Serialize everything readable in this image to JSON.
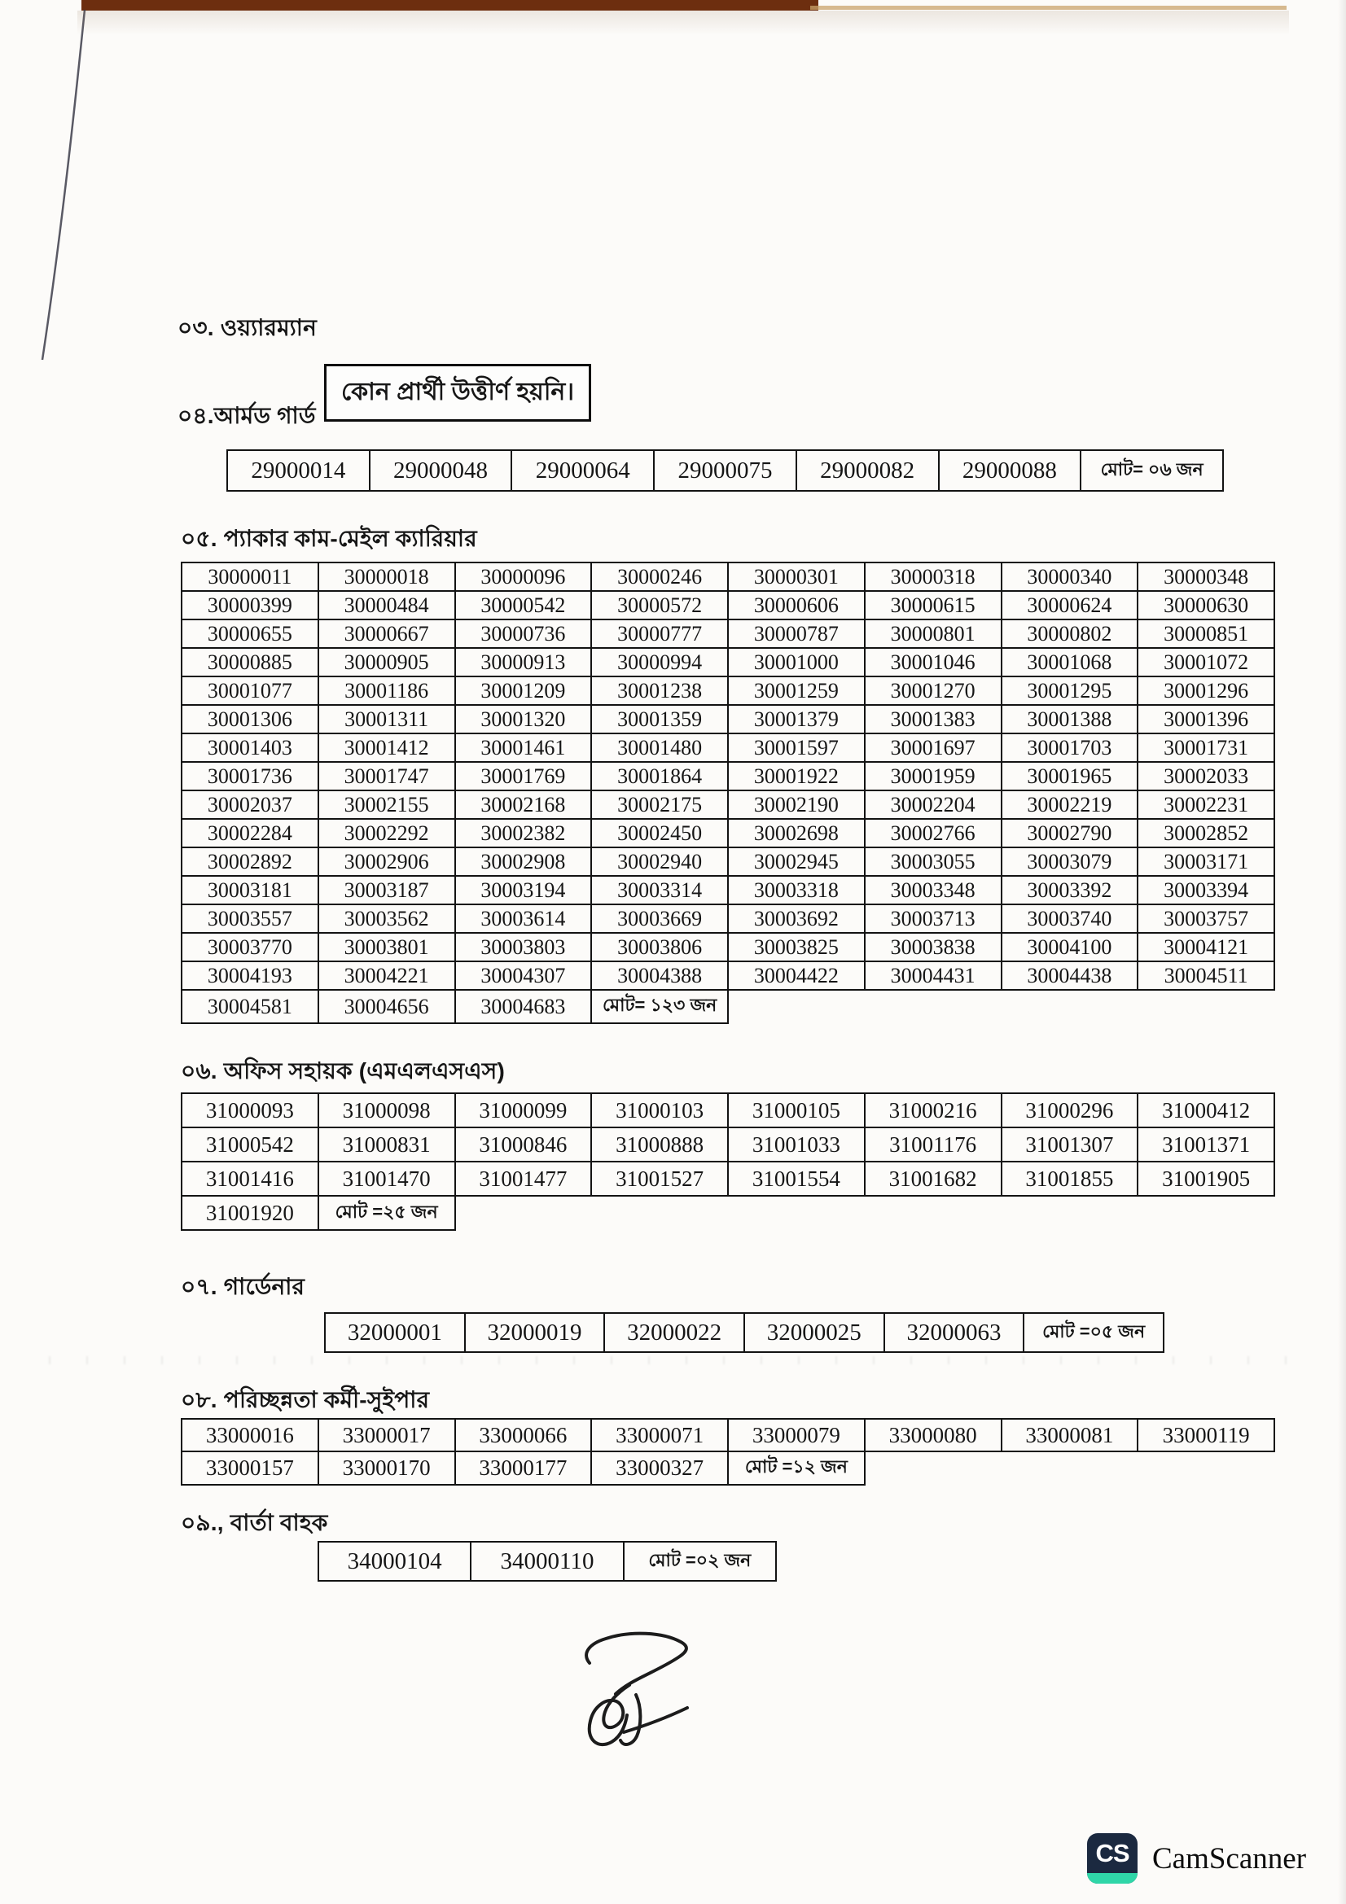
{
  "document": {
    "sections": [
      {
        "id": "wireman",
        "title": "০৩. ওয়্যারম্যান",
        "note": "কোন প্রার্থী উত্তীর্ণ হয়নি।"
      },
      {
        "id": "armed-guard",
        "title": "০৪.আর্মড গার্ড",
        "total_label": "মোট= ০৬ জন",
        "rows": [
          [
            "29000014",
            "29000048",
            "29000064",
            "29000075",
            "29000082",
            "29000088",
            "মোট= ০৬ জন"
          ]
        ]
      },
      {
        "id": "packer-cum-mail-carrier",
        "title": "০৫. প্যাকার কাম-মেইল ক্যারিয়ার",
        "total_label": "মোট= ১২৩ জন",
        "rows": [
          [
            "30000011",
            "30000018",
            "30000096",
            "30000246",
            "30000301",
            "30000318",
            "30000340",
            "30000348"
          ],
          [
            "30000399",
            "30000484",
            "30000542",
            "30000572",
            "30000606",
            "30000615",
            "30000624",
            "30000630"
          ],
          [
            "30000655",
            "30000667",
            "30000736",
            "30000777",
            "30000787",
            "30000801",
            "30000802",
            "30000851"
          ],
          [
            "30000885",
            "30000905",
            "30000913",
            "30000994",
            "30001000",
            "30001046",
            "30001068",
            "30001072"
          ],
          [
            "30001077",
            "30001186",
            "30001209",
            "30001238",
            "30001259",
            "30001270",
            "30001295",
            "30001296"
          ],
          [
            "30001306",
            "30001311",
            "30001320",
            "30001359",
            "30001379",
            "30001383",
            "30001388",
            "30001396"
          ],
          [
            "30001403",
            "30001412",
            "30001461",
            "30001480",
            "30001597",
            "30001697",
            "30001703",
            "30001731"
          ],
          [
            "30001736",
            "30001747",
            "30001769",
            "30001864",
            "30001922",
            "30001959",
            "30001965",
            "30002033"
          ],
          [
            "30002037",
            "30002155",
            "30002168",
            "30002175",
            "30002190",
            "30002204",
            "30002219",
            "30002231"
          ],
          [
            "30002284",
            "30002292",
            "30002382",
            "30002450",
            "30002698",
            "30002766",
            "30002790",
            "30002852"
          ],
          [
            "30002892",
            "30002906",
            "30002908",
            "30002940",
            "30002945",
            "30003055",
            "30003079",
            "30003171"
          ],
          [
            "30003181",
            "30003187",
            "30003194",
            "30003314",
            "30003318",
            "30003348",
            "30003392",
            "30003394"
          ],
          [
            "30003557",
            "30003562",
            "30003614",
            "30003669",
            "30003692",
            "30003713",
            "30003740",
            "30003757"
          ],
          [
            "30003770",
            "30003801",
            "30003803",
            "30003806",
            "30003825",
            "30003838",
            "30004100",
            "30004121"
          ],
          [
            "30004193",
            "30004221",
            "30004307",
            "30004388",
            "30004422",
            "30004431",
            "30004438",
            "30004511"
          ],
          [
            "30004581",
            "30004656",
            "30004683",
            "মোট= ১২৩ জন"
          ]
        ]
      },
      {
        "id": "office-assistant-mlss",
        "title": "০৬. অফিস সহায়ক (এমএলএসএস)",
        "total_label": "মোট =২৫ জন",
        "rows": [
          [
            "31000093",
            "31000098",
            "31000099",
            "31000103",
            "31000105",
            "31000216",
            "31000296",
            "31000412"
          ],
          [
            "31000542",
            "31000831",
            "31000846",
            "31000888",
            "31001033",
            "31001176",
            "31001307",
            "31001371"
          ],
          [
            "31001416",
            "31001470",
            "31001477",
            "31001527",
            "31001554",
            "31001682",
            "31001855",
            "31001905"
          ],
          [
            "31001920",
            "মোট =২৫ জন"
          ]
        ]
      },
      {
        "id": "gardener",
        "title": "০৭. গার্ডেনার",
        "total_label": "মোট =০৫ জন",
        "rows": [
          [
            "32000001",
            "32000019",
            "32000022",
            "32000025",
            "32000063",
            "মোট =০৫ জন"
          ]
        ]
      },
      {
        "id": "cleaner-sweeper",
        "title": "০৮. পরিচ্ছন্নতা কর্মী-সুইপার",
        "total_label": "মোট =১২ জন",
        "rows": [
          [
            "33000016",
            "33000017",
            "33000066",
            "33000071",
            "33000079",
            "33000080",
            "33000081",
            "33000119"
          ],
          [
            "33000157",
            "33000170",
            "33000177",
            "33000327",
            "মোট =১২ জন"
          ]
        ]
      },
      {
        "id": "messenger",
        "title": "০৯., বার্তা বাহক",
        "total_label": "মোট =০২ জন",
        "rows": [
          [
            "34000104",
            "34000110",
            "মোট =০২ জন"
          ]
        ]
      }
    ],
    "footer": {
      "brand_initials": "CS",
      "brand_name": "CamScanner"
    },
    "colors": {
      "cs_icon_navy": "#1b2940",
      "cs_icon_teal": "#2fd6a8",
      "scan_strip_brown": "#6d2e0f",
      "ink": "#161616"
    }
  }
}
